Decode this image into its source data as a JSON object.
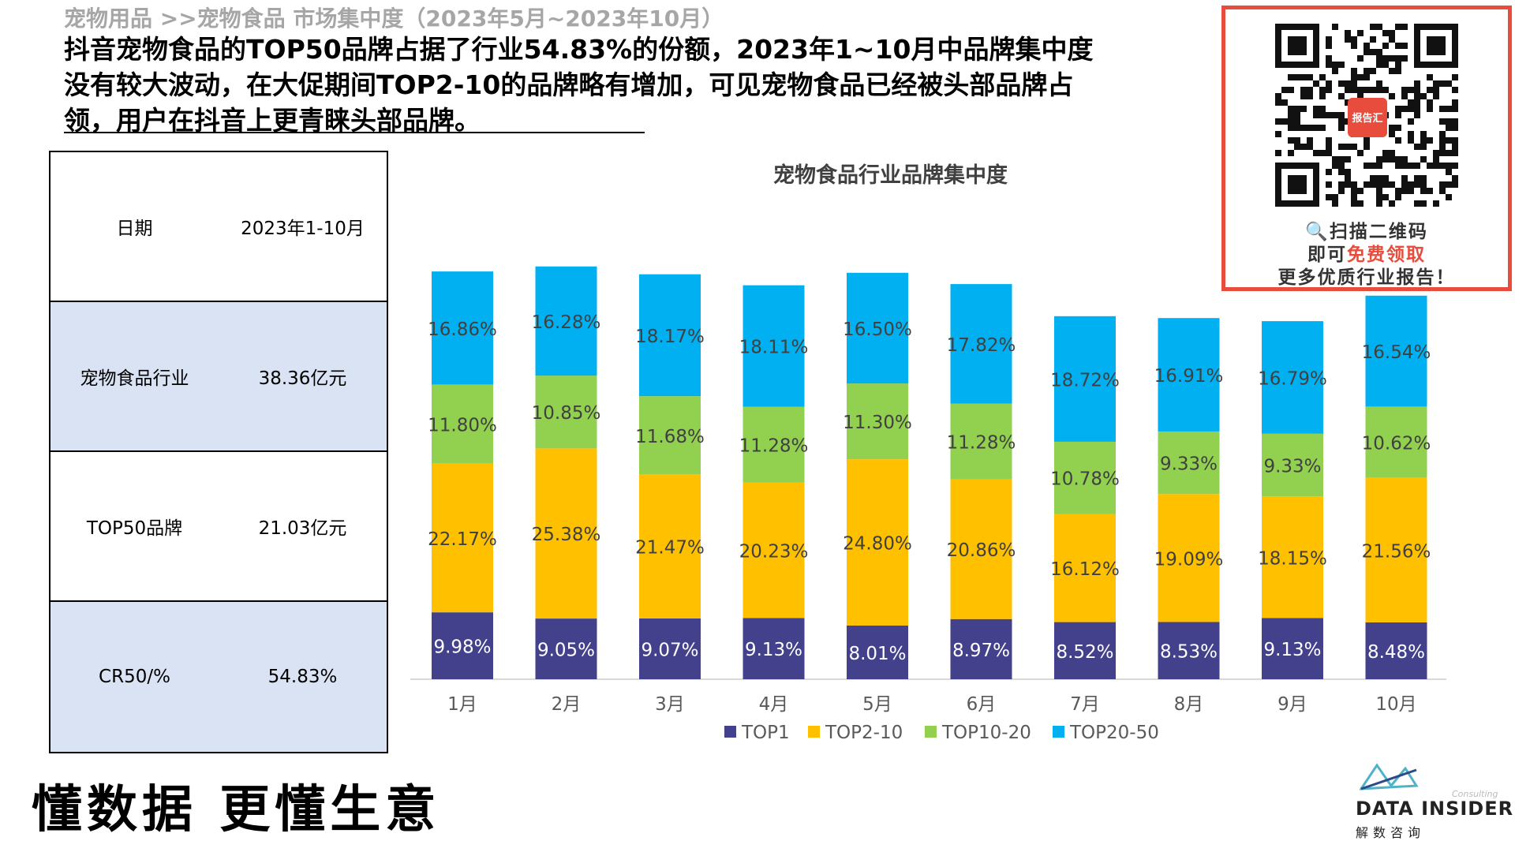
{
  "header": {
    "breadcrumb": "宠物用品 >>宠物食品 市场集中度（2023年5月~2023年10月）",
    "headline": "抖音宠物食品的TOP50品牌占据了行业54.83%的份额，2023年1~10月中品牌集中度没有较大波动，在大促期间TOP2-10的品牌略有增加，可见宠物食品已经被头部品牌占领，用户在抖音上更青睐头部品牌。"
  },
  "info_table": {
    "rows": [
      {
        "label": "日期",
        "value": "2023年1-10月"
      },
      {
        "label": "宠物食品行业",
        "value": "38.36亿元"
      },
      {
        "label": "TOP50品牌",
        "value": "21.03亿元"
      },
      {
        "label": "CR50/%",
        "value": "54.83%"
      }
    ]
  },
  "chart_data": {
    "type": "bar",
    "stacked": true,
    "title": "宠物食品行业品牌集中度",
    "categories": [
      "1月",
      "2月",
      "3月",
      "4月",
      "5月",
      "6月",
      "7月",
      "8月",
      "9月",
      "10月"
    ],
    "series": [
      {
        "name": "TOP1",
        "color": "#44418c",
        "values": [
          9.98,
          9.05,
          9.07,
          9.13,
          8.01,
          8.97,
          8.52,
          8.53,
          9.13,
          8.48
        ]
      },
      {
        "name": "TOP2-10",
        "color": "#ffc000",
        "values": [
          22.17,
          25.38,
          21.47,
          20.23,
          24.8,
          20.86,
          16.12,
          19.09,
          18.15,
          21.56
        ]
      },
      {
        "name": "TOP10-20",
        "color": "#92d050",
        "values": [
          11.8,
          10.85,
          11.68,
          11.28,
          11.3,
          11.28,
          10.78,
          9.33,
          9.33,
          10.62
        ]
      },
      {
        "name": "TOP20-50",
        "color": "#00b0f0",
        "values": [
          16.86,
          16.28,
          18.17,
          18.11,
          16.5,
          17.82,
          18.72,
          16.91,
          16.79,
          16.54
        ]
      }
    ],
    "value_suffix": "%",
    "legend_position": "bottom",
    "grid": false
  },
  "promo": {
    "line1_icon": "magnifier-icon",
    "line1": "扫描二维码",
    "line2_prefix": "即可",
    "line2_highlight": "免费领取",
    "line3": "更多优质行业报告！",
    "qr_badge": "报告汇"
  },
  "footer": {
    "slogan": "懂数据 更懂生意",
    "logo_name": "DATA INSIDER",
    "logo_sub": "解数咨询",
    "logo_consult": "Consulting"
  }
}
